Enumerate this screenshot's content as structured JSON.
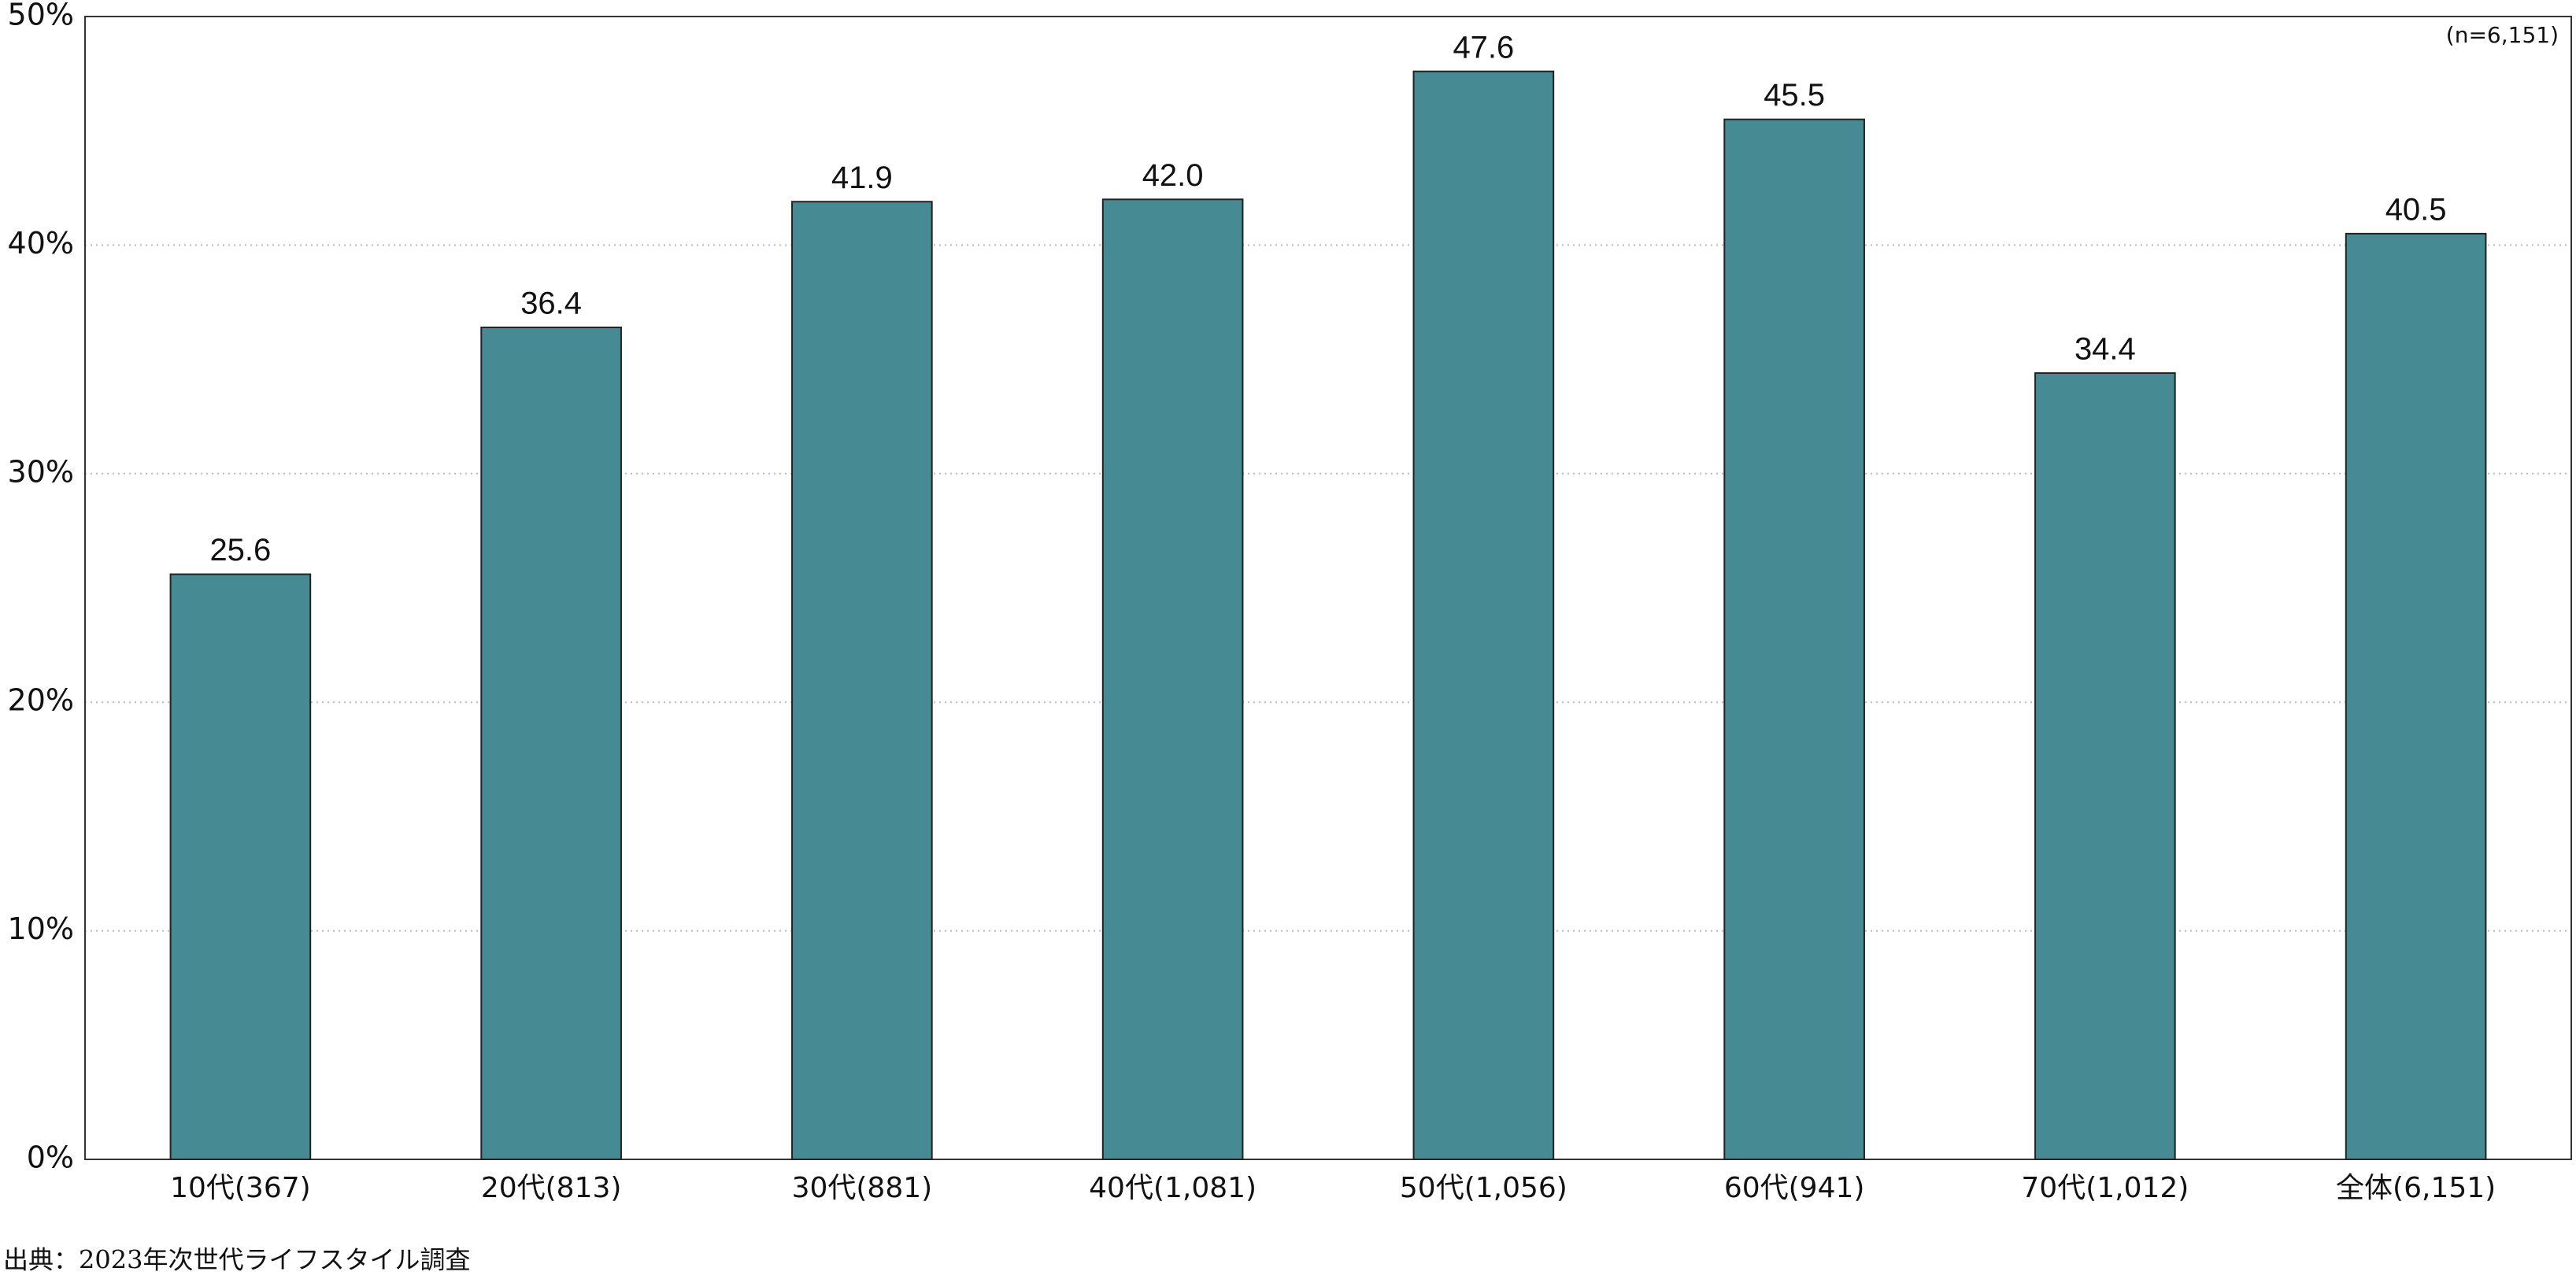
{
  "chart_data": {
    "type": "bar",
    "annotation": "(n=6,151)",
    "source": "出典：2023年次世代ライフスタイル調査",
    "categories": [
      "10代(367)",
      "20代(813)",
      "30代(881)",
      "40代(1,081)",
      "50代(1,056)",
      "60代(941)",
      "70代(1,012)",
      "全体(6,151)"
    ],
    "values": [
      25.6,
      36.4,
      41.9,
      42.0,
      47.6,
      45.5,
      34.4,
      40.5
    ],
    "value_labels": [
      "25.6",
      "36.4",
      "41.9",
      "42.0",
      "47.6",
      "45.5",
      "34.4",
      "40.5"
    ],
    "color": "#468b93",
    "ylim": [
      0,
      50
    ],
    "yticks": [
      {
        "value": 0,
        "label": "0%"
      },
      {
        "value": 10,
        "label": "10%"
      },
      {
        "value": 20,
        "label": "20%"
      },
      {
        "value": 30,
        "label": "30%"
      },
      {
        "value": 40,
        "label": "40%"
      },
      {
        "value": 50,
        "label": "50%"
      }
    ],
    "grid": true
  }
}
